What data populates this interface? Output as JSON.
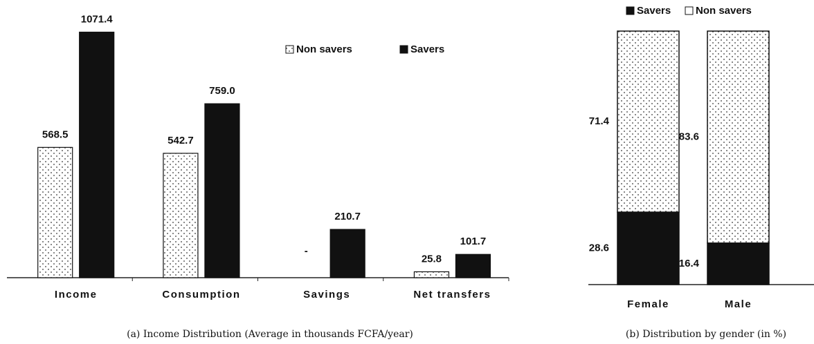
{
  "chart_data": [
    {
      "type": "bar",
      "title": "(a) Income Distribution (Average in thousands FCFA/year)",
      "categories": [
        "Income",
        "Consumption",
        "Savings",
        "Net transfers"
      ],
      "series": [
        {
          "name": "Non savers",
          "color": "dotted",
          "values": [
            568.5,
            542.7,
            null,
            25.8
          ],
          "value_labels": [
            "568.5",
            "542.7",
            "-",
            "25.8"
          ]
        },
        {
          "name": "Savers",
          "color": "#111111",
          "values": [
            1071.4,
            759.0,
            210.7,
            101.7
          ],
          "value_labels": [
            "1071.4",
            "759.0",
            "210.7",
            "101.7"
          ]
        }
      ],
      "ylim": [
        0,
        1100
      ],
      "legend": "top-right"
    },
    {
      "type": "stacked-bar",
      "title": "(b) Distribution by gender (in %)",
      "categories": [
        "Female",
        "Male"
      ],
      "series": [
        {
          "name": "Savers",
          "color": "#111111",
          "values": [
            28.6,
            16.4
          ]
        },
        {
          "name": "Non savers",
          "color": "dotted",
          "values": [
            71.4,
            83.6
          ]
        }
      ],
      "ylim": [
        0,
        100
      ],
      "legend": "top"
    }
  ]
}
